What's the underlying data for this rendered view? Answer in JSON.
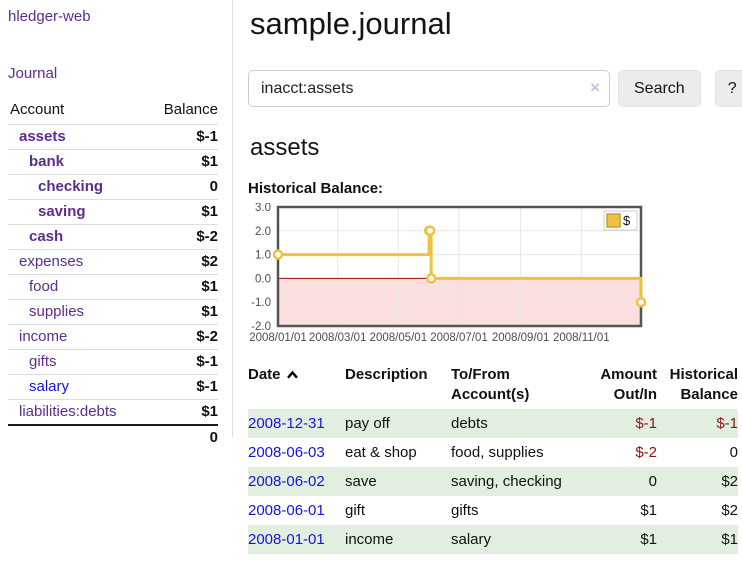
{
  "app": {
    "title": "hledger-web"
  },
  "sidebar": {
    "journal_link": "Journal",
    "table": {
      "account_header": "Account",
      "balance_header": "Balance",
      "accounts": [
        {
          "name": "assets",
          "balance": "$-1",
          "depth": 1,
          "matched": true,
          "balance_style": "negative-strong"
        },
        {
          "name": "bank",
          "balance": "$1",
          "depth": 2,
          "matched": true,
          "balance_style": "normal"
        },
        {
          "name": "checking",
          "balance": "0",
          "depth": 3,
          "matched": true,
          "balance_style": "normal"
        },
        {
          "name": "saving",
          "balance": "$1",
          "depth": 3,
          "matched": true,
          "balance_style": "normal"
        },
        {
          "name": "cash",
          "balance": "$-2",
          "depth": 2,
          "matched": true,
          "balance_style": "negative-strong"
        },
        {
          "name": "expenses",
          "balance": "$2",
          "depth": 1,
          "matched": false,
          "balance_style": "normal"
        },
        {
          "name": "food",
          "balance": "$1",
          "depth": 2,
          "matched": false,
          "balance_style": "normal"
        },
        {
          "name": "supplies",
          "balance": "$1",
          "depth": 2,
          "matched": false,
          "balance_style": "normal"
        },
        {
          "name": "income",
          "balance": "$-2",
          "depth": 1,
          "matched": false,
          "balance_style": "negative-muted"
        },
        {
          "name": "gifts",
          "balance": "$-1",
          "depth": 2,
          "matched": false,
          "balance_style": "negative-muted"
        },
        {
          "name": "salary",
          "balance": "$-1",
          "depth": 2,
          "matched": false,
          "balance_style": "negative-muted"
        },
        {
          "name": "liabilities:debts",
          "balance": "$1",
          "depth": 1,
          "matched": false,
          "balance_style": "normal"
        }
      ],
      "total": "0"
    }
  },
  "main": {
    "title": "sample.journal",
    "search": {
      "value": "inacct:assets",
      "clear_icon": "×",
      "search_button": "Search",
      "help_button": "?"
    },
    "account_heading": "assets",
    "chart_label": "Historical Balance:",
    "register": {
      "headers": {
        "date": "Date",
        "description": "Description",
        "accounts": "To/From Account(s)",
        "amount": "Amount Out/In",
        "balance": "Historical Balance"
      },
      "sort": "date-ascending",
      "rows": [
        {
          "date": "2008-12-31",
          "description": "pay off",
          "accounts": "debts",
          "amount": "$-1",
          "balance": "$-1"
        },
        {
          "date": "2008-06-03",
          "description": "eat & shop",
          "accounts": "food, supplies",
          "amount": "$-2",
          "balance": "0"
        },
        {
          "date": "2008-06-02",
          "description": "save",
          "accounts": "saving, checking",
          "amount": "0",
          "balance": "$2"
        },
        {
          "date": "2008-06-01",
          "description": "gift",
          "accounts": "gifts",
          "amount": "$1",
          "balance": "$2"
        },
        {
          "date": "2008-01-01",
          "description": "income",
          "accounts": "salary",
          "amount": "$1",
          "balance": "$1"
        }
      ]
    }
  },
  "chart_data": {
    "type": "line",
    "title": "Historical Balance:",
    "step": true,
    "xlim": [
      "2008/01/01",
      "2008/12/31"
    ],
    "ylim": [
      -2,
      3
    ],
    "x_ticks": [
      "2008/01/01",
      "2008/03/01",
      "2008/05/01",
      "2008/07/01",
      "2008/09/01",
      "2008/11/01"
    ],
    "y_ticks": [
      3.0,
      2.0,
      1.0,
      0.0,
      -1.0,
      -2.0
    ],
    "legend": {
      "position": "top-right",
      "label": "$"
    },
    "series": [
      {
        "name": "$",
        "color": "#edc240",
        "points": [
          [
            "2008/01/01",
            1
          ],
          [
            "2008/06/01",
            2
          ],
          [
            "2008/06/02",
            2
          ],
          [
            "2008/06/03",
            0
          ],
          [
            "2008/12/31",
            -1
          ]
        ]
      }
    ],
    "grid": true,
    "grid_color": "#e6e6e6",
    "border_color": "#545454",
    "zero_line_color": "#a40000",
    "negative_region_color": "#fbdfdf"
  },
  "colors": {
    "link_purple": "#5b2d91",
    "link_blue": "#1414dd",
    "negative_strong": "#8b1414",
    "negative_muted": "#c0707a",
    "row_green": "#e2efe0",
    "chart_line": "#edc240"
  }
}
